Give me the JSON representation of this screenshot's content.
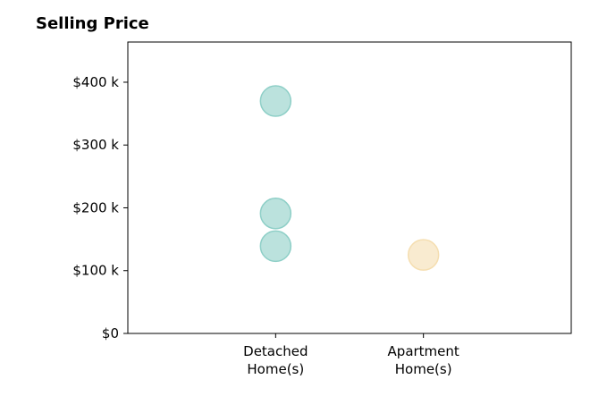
{
  "chart_data": {
    "type": "scatter",
    "title": "Selling Price",
    "xlabel": "",
    "ylabel": "",
    "categories": [
      [
        "Detached",
        "Home(s)"
      ],
      [
        "Apartment",
        "Home(s)"
      ]
    ],
    "points": [
      {
        "category": 0,
        "value": 370000,
        "color": "#8ecfc7"
      },
      {
        "category": 0,
        "value": 191000,
        "color": "#8ecfc7"
      },
      {
        "category": 0,
        "value": 139000,
        "color": "#8ecfc7"
      },
      {
        "category": 1,
        "value": 125000,
        "color": "#f5deb0"
      }
    ],
    "yticks": [
      {
        "value": 0,
        "label": "$0"
      },
      {
        "value": 100000,
        "label": "$100 k"
      },
      {
        "value": 200000,
        "label": "$200 k"
      },
      {
        "value": 300000,
        "label": "$300 k"
      },
      {
        "value": 400000,
        "label": "$400 k"
      }
    ],
    "ylim": [
      0,
      464000
    ],
    "xlim": [
      -1,
      2
    ],
    "grid": false,
    "legend": "none"
  }
}
